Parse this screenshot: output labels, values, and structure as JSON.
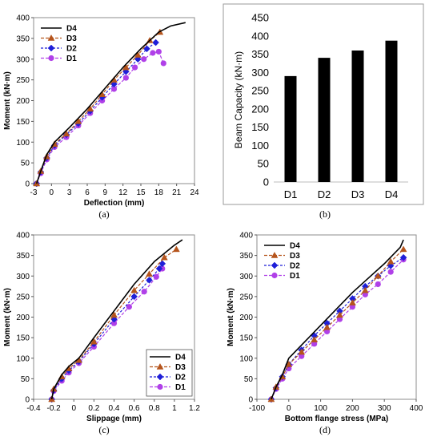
{
  "colors": {
    "D4": "#000000",
    "D3": "#b5541c",
    "D2": "#1f1fd8",
    "D1": "#b040e8",
    "bar": "#000000",
    "frame": "#8c8c8c"
  },
  "chart_data": [
    {
      "id": "a",
      "panel_label": "(a)",
      "type": "line",
      "xlabel": "Deflection (mm)",
      "ylabel": "Moment (kN·m)",
      "xlim": [
        -3,
        24
      ],
      "ylim": [
        0,
        400
      ],
      "xticks": [
        -3,
        0,
        3,
        6,
        9,
        12,
        15,
        18,
        21,
        24
      ],
      "yticks": [
        0,
        50,
        100,
        150,
        200,
        250,
        300,
        350,
        400
      ],
      "legend": "top-left",
      "series": [
        {
          "name": "D4",
          "x": [
            -2.5,
            -1.8,
            -0.8,
            0.5,
            3,
            6,
            9,
            12,
            15,
            18,
            20,
            22.5
          ],
          "y": [
            0,
            30,
            70,
            100,
            135,
            180,
            230,
            280,
            325,
            365,
            380,
            388
          ]
        },
        {
          "name": "D3",
          "x": [
            -2.5,
            -1.8,
            -0.8,
            0.5,
            2.5,
            4.5,
            6.5,
            8.5,
            10.5,
            12.5,
            14.5,
            16.5,
            18.2
          ],
          "y": [
            0,
            30,
            65,
            95,
            120,
            150,
            180,
            215,
            250,
            280,
            310,
            345,
            365
          ]
        },
        {
          "name": "D2",
          "x": [
            -2.5,
            -1.8,
            -0.8,
            0.5,
            2.5,
            4.5,
            6.5,
            8.5,
            10.5,
            12.5,
            14.5,
            16,
            17.5
          ],
          "y": [
            0,
            28,
            62,
            92,
            118,
            145,
            175,
            208,
            240,
            270,
            300,
            325,
            340
          ]
        },
        {
          "name": "D1",
          "x": [
            -2.5,
            -1.8,
            -0.8,
            0.5,
            2.5,
            4.5,
            6.5,
            8.5,
            10.5,
            12.5,
            14,
            15.5,
            17,
            18,
            18.8
          ],
          "y": [
            0,
            25,
            58,
            88,
            112,
            140,
            170,
            200,
            228,
            255,
            280,
            300,
            315,
            318,
            290
          ]
        }
      ]
    },
    {
      "id": "b",
      "panel_label": "(b)",
      "type": "bar",
      "ylabel": "Beam Capacity (kN·m)",
      "categories": [
        "D1",
        "D2",
        "D3",
        "D4"
      ],
      "values": [
        290,
        340,
        360,
        387
      ],
      "ylim": [
        0,
        450
      ],
      "yticks": [
        0,
        50,
        100,
        150,
        200,
        250,
        300,
        350,
        400,
        450
      ]
    },
    {
      "id": "c",
      "panel_label": "(c)",
      "type": "line",
      "xlabel": "Slippage (mm)",
      "ylabel": "Moment (kN·m)",
      "xlim": [
        -0.4,
        1.2
      ],
      "ylim": [
        0,
        400
      ],
      "xticks": [
        -0.4,
        -0.2,
        0,
        0.2,
        0.4,
        0.6,
        0.8,
        1,
        1.2
      ],
      "yticks": [
        0,
        50,
        100,
        150,
        200,
        250,
        300,
        350,
        400
      ],
      "legend": "bottom-right",
      "series": [
        {
          "name": "D4",
          "x": [
            -0.22,
            -0.2,
            -0.12,
            -0.05,
            0.05,
            0.2,
            0.4,
            0.6,
            0.8,
            1.0,
            1.08
          ],
          "y": [
            0,
            25,
            60,
            80,
            100,
            150,
            215,
            280,
            335,
            375,
            388
          ]
        },
        {
          "name": "D3",
          "x": [
            -0.22,
            -0.2,
            -0.12,
            -0.05,
            0.05,
            0.2,
            0.4,
            0.6,
            0.75,
            0.9,
            1.02
          ],
          "y": [
            0,
            25,
            55,
            75,
            95,
            140,
            205,
            265,
            305,
            345,
            365
          ]
        },
        {
          "name": "D2",
          "x": [
            -0.22,
            -0.2,
            -0.12,
            -0.05,
            0.05,
            0.2,
            0.4,
            0.6,
            0.75,
            0.85,
            0.88
          ],
          "y": [
            0,
            22,
            50,
            70,
            92,
            135,
            195,
            250,
            290,
            318,
            330
          ]
        },
        {
          "name": "D1",
          "x": [
            -0.22,
            -0.2,
            -0.12,
            -0.05,
            0.05,
            0.2,
            0.4,
            0.55,
            0.7,
            0.82,
            0.88
          ],
          "y": [
            0,
            20,
            45,
            65,
            88,
            128,
            185,
            225,
            262,
            298,
            318
          ]
        }
      ]
    },
    {
      "id": "d",
      "panel_label": "(d)",
      "type": "line",
      "xlabel": "Bottom flange stress (MPa)",
      "ylabel": "Moment (kN·m)",
      "xlim": [
        -100,
        400
      ],
      "ylim": [
        0,
        400
      ],
      "xticks": [
        -100,
        0,
        100,
        200,
        300,
        400
      ],
      "yticks": [
        0,
        50,
        100,
        150,
        200,
        250,
        300,
        350,
        400
      ],
      "legend": "top-left",
      "series": [
        {
          "name": "D4",
          "x": [
            -55,
            -40,
            -20,
            0,
            50,
            100,
            150,
            200,
            250,
            300,
            350,
            360
          ],
          "y": [
            0,
            30,
            60,
            100,
            140,
            180,
            220,
            260,
            295,
            330,
            370,
            388
          ]
        },
        {
          "name": "D3",
          "x": [
            -55,
            -40,
            -20,
            0,
            40,
            80,
            120,
            160,
            200,
            240,
            280,
            320,
            360
          ],
          "y": [
            0,
            30,
            55,
            85,
            115,
            145,
            175,
            205,
            235,
            265,
            300,
            335,
            365
          ]
        },
        {
          "name": "D2",
          "x": [
            -55,
            -40,
            -20,
            0,
            40,
            80,
            120,
            160,
            200,
            240,
            280,
            320,
            360
          ],
          "y": [
            0,
            28,
            55,
            85,
            120,
            155,
            185,
            215,
            245,
            275,
            300,
            325,
            345
          ]
        },
        {
          "name": "D1",
          "x": [
            -55,
            -40,
            -20,
            0,
            40,
            80,
            120,
            160,
            200,
            240,
            280,
            320,
            360
          ],
          "y": [
            0,
            25,
            50,
            75,
            105,
            135,
            165,
            195,
            225,
            255,
            280,
            310,
            340
          ]
        }
      ]
    }
  ]
}
